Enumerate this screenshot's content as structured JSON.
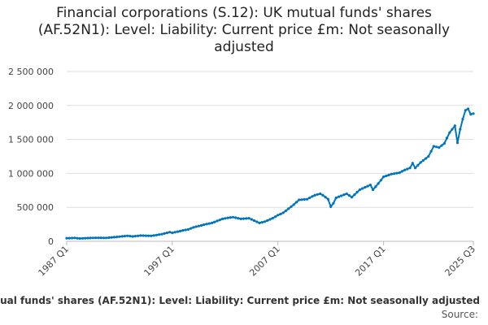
{
  "chart_data": {
    "type": "line",
    "title": "Financial corporations (S.12): UK mutual funds' shares (AF.52N1): Level: Liability: Current price £m: Not seasonally adjusted",
    "xlabel": "",
    "ylabel": "",
    "x_ticks": [
      "1987 Q1",
      "1997 Q1",
      "2007 Q1",
      "2017 Q1",
      "2025 Q3"
    ],
    "y_ticks": [
      "0",
      "500 000",
      "1 000 000",
      "1 500 000",
      "2 000 000",
      "2 500 000"
    ],
    "ylim": [
      0,
      2500000
    ],
    "grid": true,
    "legend": "bottom",
    "series": [
      {
        "name": "Financial corporations (S.12): UK mutual funds' shares (AF.52N1): Level: Liability: Current price £m: Not seasonally adjusted",
        "color": "#0075be",
        "points": [
          [
            "1987 Q1",
            45000
          ],
          [
            "1987 Q4",
            50000
          ],
          [
            "1988 Q2",
            42000
          ],
          [
            "1989 Q1",
            48000
          ],
          [
            "1990 Q1",
            52000
          ],
          [
            "1990 Q4",
            50000
          ],
          [
            "1991 Q4",
            65000
          ],
          [
            "1992 Q4",
            80000
          ],
          [
            "1993 Q2",
            72000
          ],
          [
            "1994 Q1",
            85000
          ],
          [
            "1995 Q1",
            80000
          ],
          [
            "1996 Q1",
            105000
          ],
          [
            "1996 Q4",
            135000
          ],
          [
            "1997 Q1",
            125000
          ],
          [
            "1998 Q1",
            160000
          ],
          [
            "1998 Q3",
            175000
          ],
          [
            "1999 Q1",
            205000
          ],
          [
            "2000 Q1",
            245000
          ],
          [
            "2000 Q4",
            270000
          ],
          [
            "2001 Q4",
            330000
          ],
          [
            "2002 Q2",
            345000
          ],
          [
            "2002 Q4",
            355000
          ],
          [
            "2003 Q3",
            330000
          ],
          [
            "2004 Q2",
            340000
          ],
          [
            "2004 Q4",
            305000
          ],
          [
            "2005 Q2",
            270000
          ],
          [
            "2005 Q4",
            290000
          ],
          [
            "2006 Q3",
            340000
          ],
          [
            "2007 Q1",
            385000
          ],
          [
            "2007 Q3",
            420000
          ],
          [
            "2008 Q1",
            480000
          ],
          [
            "2008 Q3",
            540000
          ],
          [
            "2009 Q1",
            610000
          ],
          [
            "2009 Q4",
            620000
          ],
          [
            "2010 Q3",
            680000
          ],
          [
            "2011 Q1",
            700000
          ],
          [
            "2011 Q2",
            680000
          ],
          [
            "2011 Q4",
            620000
          ],
          [
            "2012 Q1",
            510000
          ],
          [
            "2012 Q2",
            560000
          ],
          [
            "2012 Q3",
            640000
          ],
          [
            "2013 Q3",
            700000
          ],
          [
            "2014 Q1",
            650000
          ],
          [
            "2014 Q4",
            760000
          ],
          [
            "2015 Q4",
            830000
          ],
          [
            "2016 Q1",
            760000
          ],
          [
            "2016 Q3",
            850000
          ],
          [
            "2017 Q1",
            950000
          ],
          [
            "2017 Q4",
            990000
          ],
          [
            "2018 Q3",
            1010000
          ],
          [
            "2019 Q1",
            1050000
          ],
          [
            "2019 Q3",
            1080000
          ],
          [
            "2019 Q4",
            1150000
          ],
          [
            "2020 Q1",
            1080000
          ],
          [
            "2020 Q3",
            1160000
          ],
          [
            "2021 Q2",
            1250000
          ],
          [
            "2021 Q4",
            1400000
          ],
          [
            "2022 Q2",
            1380000
          ],
          [
            "2022 Q4",
            1440000
          ],
          [
            "2023 Q2",
            1600000
          ],
          [
            "2023 Q4",
            1700000
          ],
          [
            "2024 Q1",
            1450000
          ],
          [
            "2024 Q2",
            1650000
          ],
          [
            "2024 Q3",
            1800000
          ],
          [
            "2024 Q4",
            1930000
          ],
          [
            "2025 Q1",
            1950000
          ],
          [
            "2025 Q2",
            1870000
          ],
          [
            "2025 Q3",
            1880000
          ]
        ]
      }
    ],
    "source": "Source:"
  }
}
